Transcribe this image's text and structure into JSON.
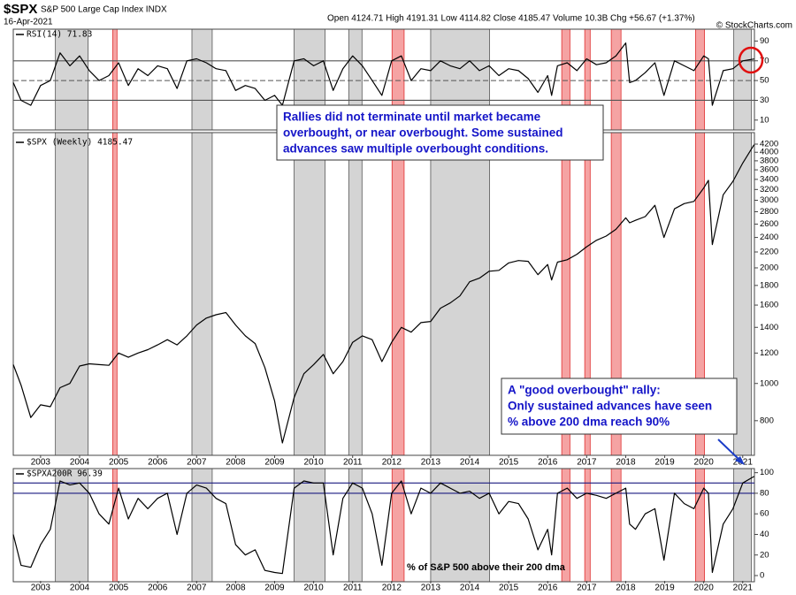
{
  "header": {
    "symbol": "$SPX",
    "name": "S&P 500 Large Cap Index INDX",
    "date": "16-Apr-2021",
    "quote": "Open 4124.71 High 4191.31 Low 4114.82 Close 4185.47 Volume 10.3B Chg +56.67 (+1.37%)",
    "copyright": "© StockCharts.com"
  },
  "chart_data": {
    "type": "line",
    "x": [
      2002.3,
      2002.5,
      2002.75,
      2003.0,
      2003.25,
      2003.5,
      2003.75,
      2004.0,
      2004.25,
      2004.5,
      2004.75,
      2005.0,
      2005.25,
      2005.5,
      2005.75,
      2006.0,
      2006.25,
      2006.5,
      2006.75,
      2007.0,
      2007.25,
      2007.5,
      2007.75,
      2008.0,
      2008.25,
      2008.5,
      2008.75,
      2009.0,
      2009.2,
      2009.5,
      2009.75,
      2010.0,
      2010.25,
      2010.5,
      2010.75,
      2011.0,
      2011.25,
      2011.5,
      2011.75,
      2012.0,
      2012.25,
      2012.5,
      2012.75,
      2013.0,
      2013.25,
      2013.5,
      2013.75,
      2014.0,
      2014.25,
      2014.5,
      2014.75,
      2015.0,
      2015.25,
      2015.5,
      2015.75,
      2016.0,
      2016.1,
      2016.25,
      2016.5,
      2016.75,
      2017.0,
      2017.25,
      2017.5,
      2017.75,
      2018.0,
      2018.1,
      2018.25,
      2018.5,
      2018.75,
      2018.98,
      2019.25,
      2019.5,
      2019.75,
      2020.0,
      2020.12,
      2020.22,
      2020.5,
      2020.75,
      2021.0,
      2021.29
    ],
    "xlim": [
      2002.3,
      2021.3
    ],
    "xticks": [
      2003,
      2004,
      2005,
      2006,
      2007,
      2008,
      2009,
      2010,
      2011,
      2012,
      2013,
      2014,
      2015,
      2016,
      2017,
      2018,
      2019,
      2020,
      2021
    ],
    "bands": [
      {
        "start": 2003.38,
        "end": 2004.22,
        "color": "#d4d4d4"
      },
      {
        "start": 2006.88,
        "end": 2007.4,
        "color": "#d4d4d4"
      },
      {
        "start": 2009.5,
        "end": 2010.29,
        "color": "#d4d4d4"
      },
      {
        "start": 2010.9,
        "end": 2011.24,
        "color": "#d4d4d4"
      },
      {
        "start": 2013.0,
        "end": 2014.51,
        "color": "#d4d4d4"
      },
      {
        "start": 2020.77,
        "end": 2021.22,
        "color": "#d4d4d4"
      },
      {
        "start": 2004.85,
        "end": 2004.96,
        "color": "#f5a3a3"
      },
      {
        "start": 2012.01,
        "end": 2012.32,
        "color": "#f5a3a3"
      },
      {
        "start": 2016.36,
        "end": 2016.57,
        "color": "#f5a3a3"
      },
      {
        "start": 2016.95,
        "end": 2017.09,
        "color": "#f5a3a3"
      },
      {
        "start": 2017.63,
        "end": 2017.88,
        "color": "#f5a3a3"
      },
      {
        "start": 2019.79,
        "end": 2020.02,
        "color": "#f5a3a3"
      }
    ],
    "panels": [
      {
        "series": [
          {
            "name": "RSI(14) 71.83",
            "color": "#000000",
            "values": [
              48,
              30,
              25,
              45,
              50,
              78,
              65,
              75,
              60,
              50,
              55,
              68,
              45,
              62,
              55,
              65,
              62,
              42,
              70,
              72,
              68,
              62,
              60,
              40,
              45,
              42,
              30,
              35,
              25,
              70,
              72,
              65,
              70,
              40,
              62,
              75,
              65,
              50,
              35,
              70,
              75,
              50,
              62,
              60,
              70,
              65,
              62,
              70,
              60,
              65,
              55,
              62,
              60,
              52,
              38,
              55,
              35,
              65,
              68,
              60,
              72,
              66,
              68,
              75,
              88,
              48,
              50,
              58,
              68,
              35,
              70,
              65,
              60,
              75,
              72,
              25,
              60,
              62,
              70,
              71.83
            ]
          }
        ],
        "ylim": [
          0,
          102
        ],
        "yticks": [
          10,
          30,
          50,
          70,
          90
        ],
        "log": false,
        "reference_lines": [
          {
            "value": 70,
            "color": "#555555",
            "dash": false
          },
          {
            "value": 50,
            "color": "#555555",
            "dash": true
          },
          {
            "value": 30,
            "color": "#555555",
            "dash": false
          }
        ]
      },
      {
        "series": [
          {
            "name": "$SPX (Weekly) 4185.47",
            "color": "#000000",
            "values": [
              1120,
              990,
              815,
              880,
              870,
              975,
              1000,
              1110,
              1125,
              1120,
              1115,
              1200,
              1170,
              1200,
              1225,
              1260,
              1300,
              1260,
              1330,
              1420,
              1480,
              1510,
              1530,
              1420,
              1330,
              1270,
              1100,
              900,
              700,
              920,
              1060,
              1120,
              1190,
              1060,
              1140,
              1280,
              1330,
              1300,
              1140,
              1280,
              1400,
              1360,
              1440,
              1450,
              1570,
              1620,
              1690,
              1840,
              1880,
              1960,
              1970,
              2060,
              2090,
              2080,
              1920,
              2040,
              1860,
              2070,
              2100,
              2170,
              2270,
              2360,
              2420,
              2520,
              2700,
              2620,
              2660,
              2720,
              2910,
              2400,
              2850,
              2940,
              2980,
              3230,
              3380,
              2300,
              3100,
              3360,
              3750,
              4185.47
            ]
          }
        ],
        "ylim": [
          650,
          4500
        ],
        "yticks": [
          800,
          1000,
          1200,
          1400,
          1600,
          1800,
          2000,
          2200,
          2400,
          2600,
          2800,
          3000,
          3200,
          3400,
          3600,
          3800,
          4000,
          4200
        ],
        "log": true,
        "reference_lines": []
      },
      {
        "series": [
          {
            "name": "$SPXA200R 96.39",
            "color": "#000000",
            "values": [
              40,
              10,
              8,
              30,
              45,
              92,
              88,
              90,
              80,
              60,
              50,
              85,
              55,
              75,
              65,
              75,
              80,
              40,
              80,
              88,
              85,
              75,
              70,
              30,
              20,
              25,
              5,
              3,
              2,
              85,
              92,
              90,
              90,
              20,
              75,
              90,
              85,
              60,
              10,
              80,
              92,
              60,
              85,
              80,
              90,
              85,
              80,
              82,
              75,
              80,
              60,
              72,
              70,
              55,
              25,
              45,
              20,
              80,
              85,
              75,
              80,
              78,
              75,
              80,
              85,
              50,
              45,
              60,
              65,
              15,
              80,
              70,
              65,
              85,
              80,
              3,
              50,
              65,
              90,
              96.39
            ]
          }
        ],
        "ylim": [
          -6,
          104
        ],
        "yticks": [
          0,
          20,
          40,
          60,
          80,
          100
        ],
        "log": false,
        "reference_lines": [
          {
            "value": 90,
            "color": "#1a1a80",
            "dash": false
          },
          {
            "value": 80,
            "color": "#1a1a80",
            "dash": false
          }
        ],
        "note": "% of S&P 500 above their 200 dma"
      }
    ],
    "annotations": [
      {
        "lines": [
          "Rallies did not terminate until market became",
          "overbought, or near overbought. Some sustained",
          "advances saw multiple overbought conditions."
        ]
      },
      {
        "lines": [
          "A \"good overbought\" rally:",
          "Only sustained advances have seen",
          "% above 200 dma reach 90%"
        ]
      }
    ]
  }
}
